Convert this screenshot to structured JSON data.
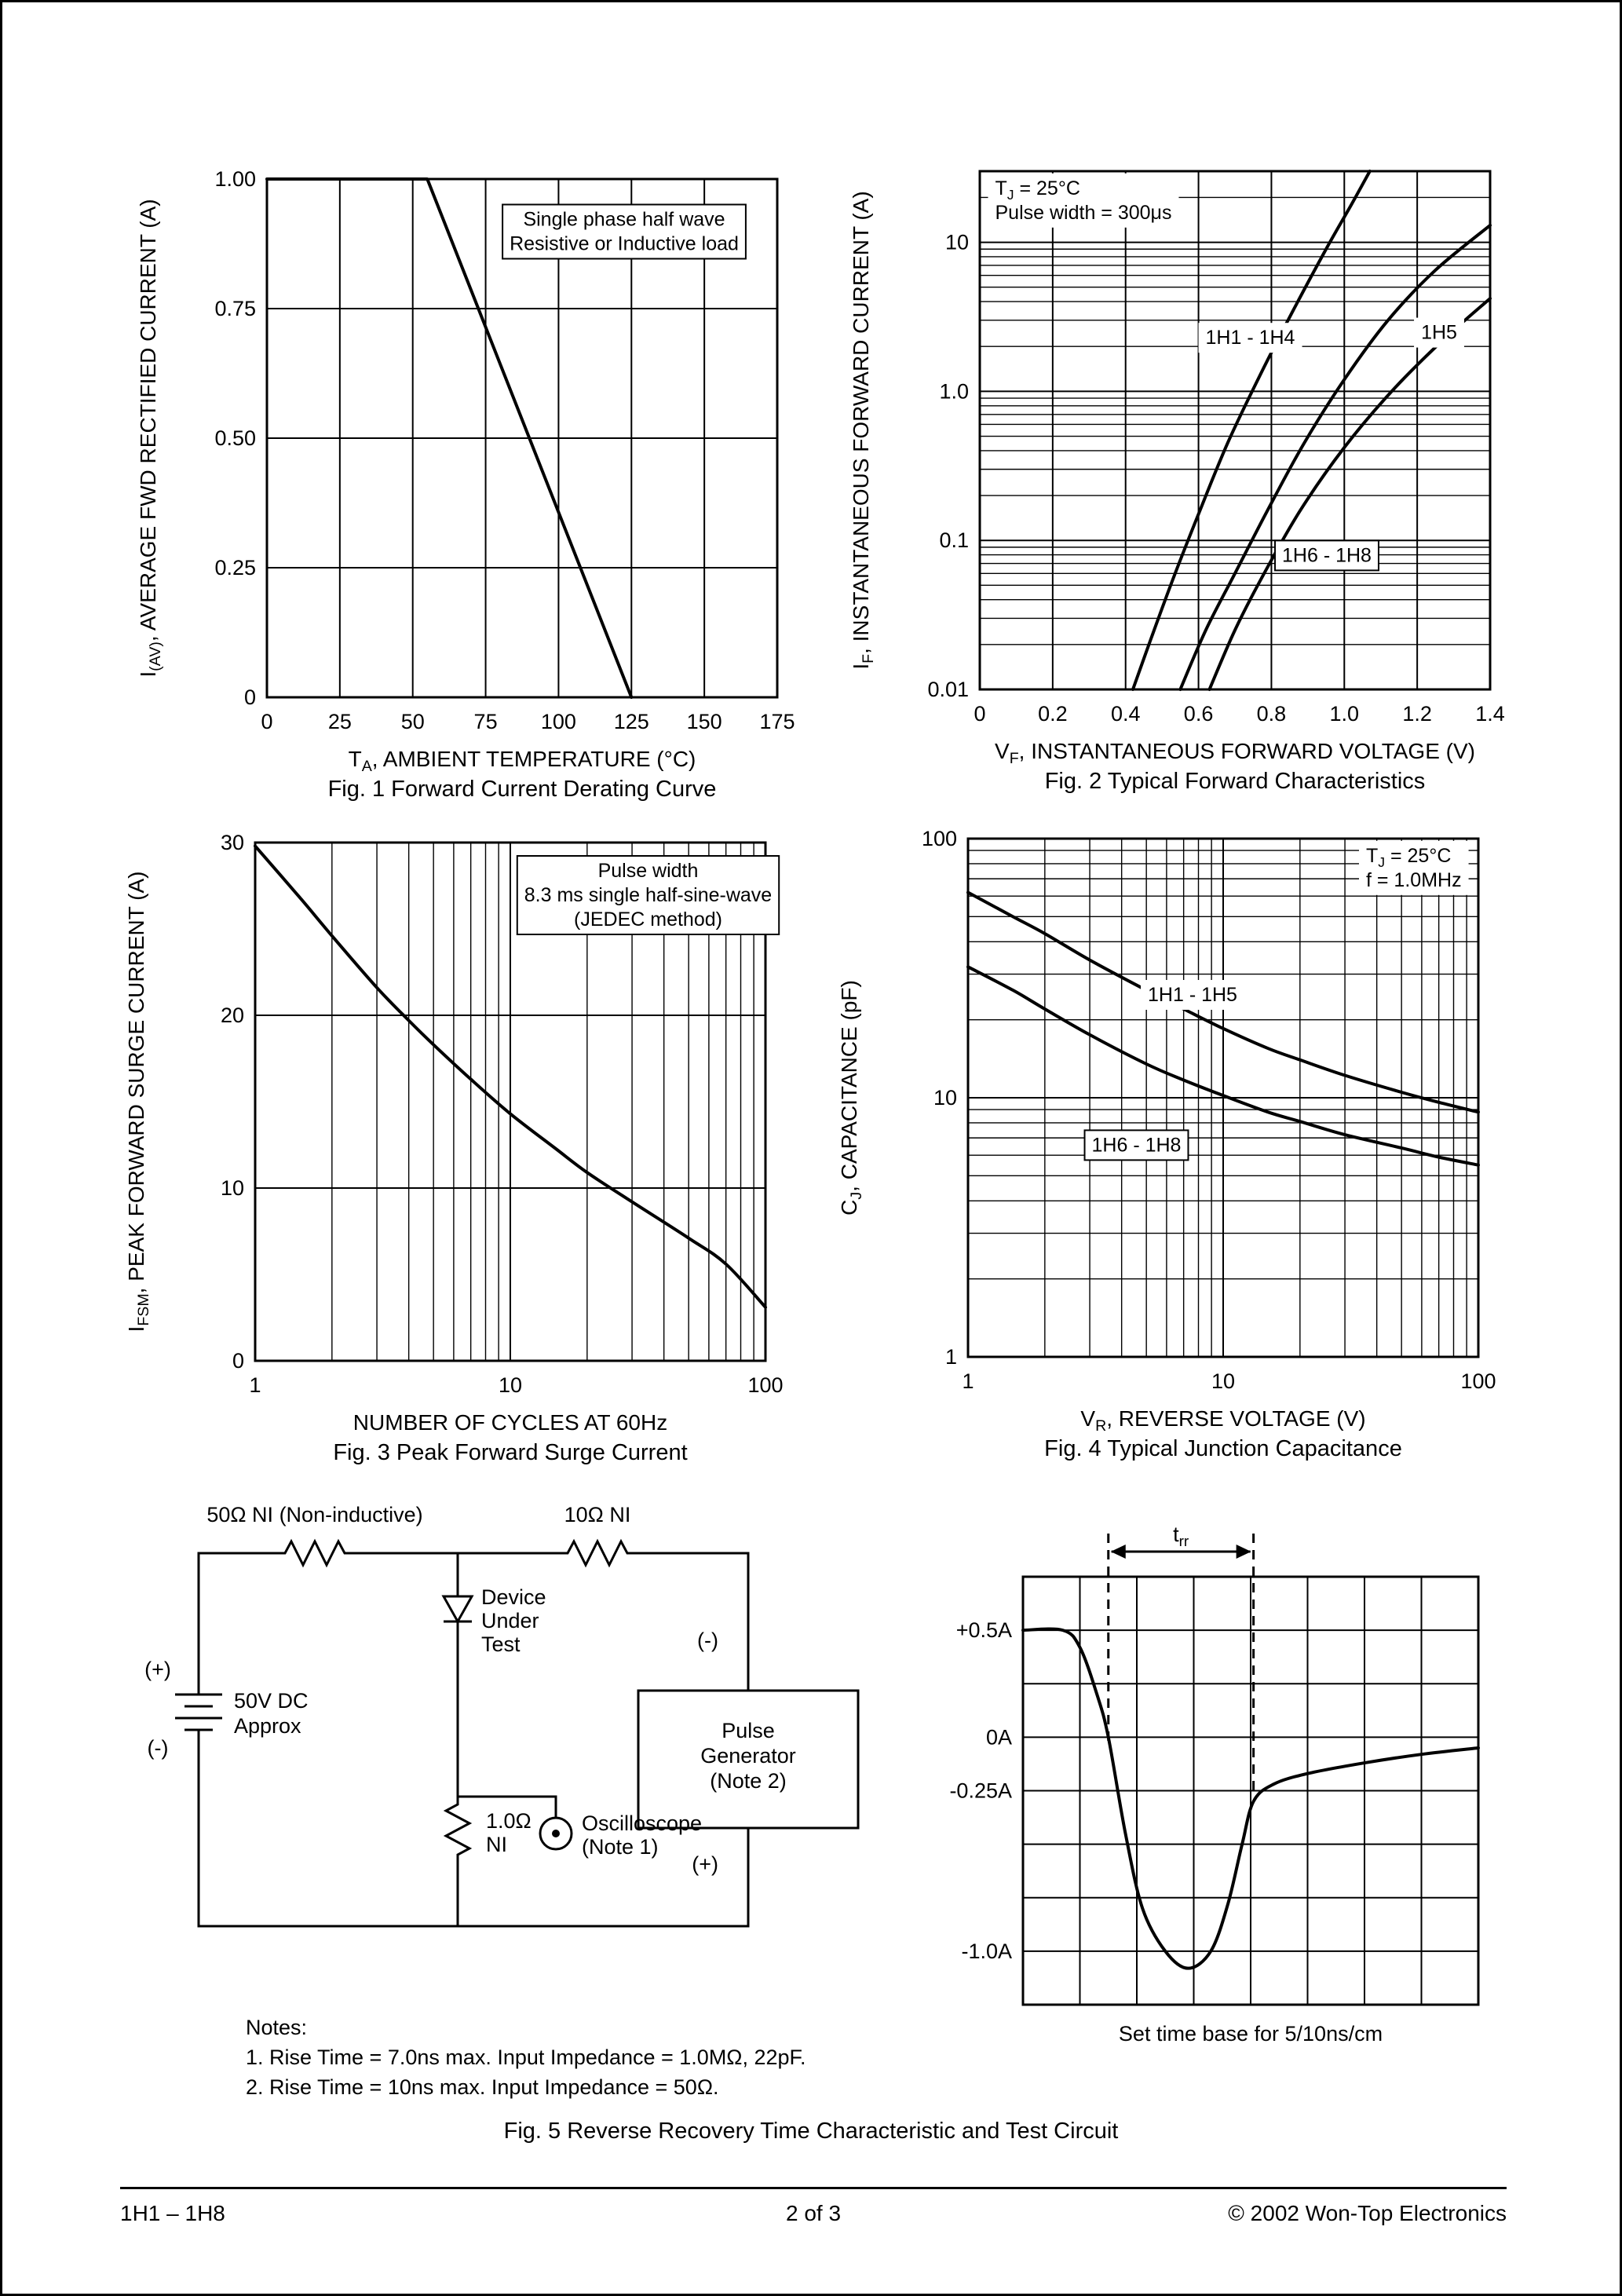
{
  "page": {
    "footer": {
      "left": "1H1 – 1H8",
      "center": "2  of  3",
      "right": "© 2002 Won-Top Electronics"
    }
  },
  "fig5": {
    "caption": "Fig. 5  Reverse Recovery Time Characteristic and Test Circuit",
    "circuit": {
      "r1_label": "50Ω NI (Non-inductive)",
      "r2_label": "10Ω NI",
      "dut_label": "Device\nUnder\nTest",
      "battery_plus": "(+)",
      "battery_minus": "(-)",
      "battery_label": "50V DC\nApprox",
      "pg_minus": "(-)",
      "pg_plus": "(+)",
      "pulse_gen_label": "Pulse\nGenerator\n(Note 2)",
      "r3_label": "1.0Ω\nNI",
      "scope_label": "Oscilloscope\n(Note 1)",
      "notes_title": "Notes:",
      "note1": "1. Rise Time = 7.0ns max. Input Impedance = 1.0MΩ, 22pF.",
      "note2": "2. Rise Time = 10ns max. Input Impedance = 50Ω."
    }
  },
  "chart_data": [
    {
      "id": "fig1",
      "type": "line",
      "title": "Fig. 1  Forward Current Derating Curve",
      "xlabel": "T_{A}, AMBIENT TEMPERATURE (°C)",
      "ylabel": "I_{(AV)}, AVERAGE FWD RECTIFIED CURRENT (A)",
      "xscale": "linear",
      "yscale": "linear",
      "xlim": [
        0,
        175
      ],
      "ylim": [
        0,
        1.0
      ],
      "xticks": [
        0,
        25,
        50,
        75,
        100,
        125,
        150,
        175
      ],
      "xtick_labels": [
        "0",
        "25",
        "50",
        "75",
        "100",
        "125",
        "150",
        "175"
      ],
      "yticks": [
        0,
        0.25,
        0.5,
        0.75,
        1.0
      ],
      "ytick_labels": [
        "0",
        "0.25",
        "0.50",
        "0.75",
        "1.00"
      ],
      "series": [
        {
          "name": "derating",
          "smooth": false,
          "points": [
            [
              0,
              1.0
            ],
            [
              55,
              1.0
            ],
            [
              125,
              0
            ]
          ]
        }
      ],
      "annotations": [
        {
          "text": "Single phase half wave\nResistive or Inductive load",
          "fx": 0.7,
          "fy": 0.1,
          "boxed": true
        }
      ]
    },
    {
      "id": "fig2",
      "type": "line",
      "title": "Fig. 2  Typical Forward Characteristics",
      "xlabel": "V_{F}, INSTANTANEOUS FORWARD VOLTAGE (V)",
      "ylabel": "I_{F}, INSTANTANEOUS FORWARD CURRENT (A)",
      "xscale": "linear",
      "yscale": "log",
      "xlim": [
        0,
        1.4
      ],
      "ylim": [
        0.01,
        30
      ],
      "xticks": [
        0,
        0.2,
        0.4,
        0.6,
        0.8,
        1.0,
        1.2,
        1.4
      ],
      "xtick_labels": [
        "0",
        "0.2",
        "0.4",
        "0.6",
        "0.8",
        "1.0",
        "1.2",
        "1.4"
      ],
      "yticks": [
        10,
        1.0,
        0.1,
        0.01
      ],
      "ytick_labels": [
        "10",
        "1.0",
        "0.1",
        "0.01"
      ],
      "series": [
        {
          "name": "1H1 - 1H4",
          "smooth": true,
          "points": [
            [
              0.42,
              0.01
            ],
            [
              0.47,
              0.022
            ],
            [
              0.53,
              0.055
            ],
            [
              0.6,
              0.15
            ],
            [
              0.68,
              0.45
            ],
            [
              0.77,
              1.3
            ],
            [
              0.86,
              3.5
            ],
            [
              0.95,
              9
            ],
            [
              1.02,
              18
            ],
            [
              1.07,
              30
            ]
          ]
        },
        {
          "name": "1H5",
          "smooth": true,
          "points": [
            [
              0.55,
              0.01
            ],
            [
              0.62,
              0.025
            ],
            [
              0.7,
              0.06
            ],
            [
              0.79,
              0.16
            ],
            [
              0.89,
              0.45
            ],
            [
              1.0,
              1.2
            ],
            [
              1.12,
              3.0
            ],
            [
              1.25,
              6.5
            ],
            [
              1.4,
              13
            ]
          ]
        },
        {
          "name": "1H6 - 1H8",
          "smooth": true,
          "points": [
            [
              0.63,
              0.01
            ],
            [
              0.7,
              0.025
            ],
            [
              0.78,
              0.06
            ],
            [
              0.88,
              0.16
            ],
            [
              1.0,
              0.42
            ],
            [
              1.13,
              1.0
            ],
            [
              1.27,
              2.2
            ],
            [
              1.4,
              4.2
            ]
          ]
        }
      ],
      "series_labels": [
        {
          "text": "1H1 - 1H4",
          "fx": 0.53,
          "fy": 0.32
        },
        {
          "text": "1H5",
          "fx": 0.9,
          "fy": 0.31
        },
        {
          "text": "1H6 - 1H8",
          "fx": 0.68,
          "fy": 0.74,
          "boxed": true
        }
      ],
      "annotations": [
        {
          "text": "T_{J} = 25°C\nPulse width = 300μs",
          "fx": 0.03,
          "fy": 0.055,
          "anchor": "start"
        }
      ]
    },
    {
      "id": "fig3",
      "type": "line",
      "title": "Fig. 3  Peak Forward Surge Current",
      "xlabel": "NUMBER OF CYCLES AT 60Hz",
      "ylabel": "I_{FSM}, PEAK FORWARD SURGE CURRENT (A)",
      "xscale": "log",
      "yscale": "linear",
      "xlim": [
        1,
        100
      ],
      "ylim": [
        0,
        30
      ],
      "xticks": [
        1,
        10,
        100
      ],
      "xtick_labels": [
        "1",
        "10",
        "100"
      ],
      "yticks": [
        0,
        10,
        20,
        30
      ],
      "ytick_labels": [
        "0",
        "10",
        "20",
        "30"
      ],
      "series": [
        {
          "name": "surge",
          "smooth": true,
          "points": [
            [
              1,
              29.8
            ],
            [
              1.5,
              26.8
            ],
            [
              2,
              24.6
            ],
            [
              3,
              21.6
            ],
            [
              4,
              19.7
            ],
            [
              5,
              18.3
            ],
            [
              7,
              16.3
            ],
            [
              10,
              14.3
            ],
            [
              15,
              12.3
            ],
            [
              20,
              10.9
            ],
            [
              30,
              9.2
            ],
            [
              50,
              7.1
            ],
            [
              70,
              5.6
            ],
            [
              100,
              3.1
            ]
          ]
        }
      ],
      "annotations": [
        {
          "text": "Pulse width\n8.3 ms single half-sine-wave\n(JEDEC method)",
          "fx": 0.77,
          "fy": 0.1,
          "boxed": true
        }
      ]
    },
    {
      "id": "fig4",
      "type": "line",
      "title": "Fig. 4  Typical Junction Capacitance",
      "xlabel": "V_{R}, REVERSE VOLTAGE (V)",
      "ylabel": "C_{J}, CAPACITANCE (pF)",
      "xscale": "log",
      "yscale": "log",
      "xlim": [
        1,
        100
      ],
      "ylim": [
        1,
        100
      ],
      "xticks": [
        1,
        10,
        100
      ],
      "xtick_labels": [
        "1",
        "10",
        "100"
      ],
      "yticks": [
        1,
        10,
        100
      ],
      "ytick_labels": [
        "1",
        "10",
        "100"
      ],
      "series": [
        {
          "name": "1H1 - 1H5",
          "smooth": true,
          "points": [
            [
              1,
              62
            ],
            [
              1.5,
              50
            ],
            [
              2,
              43
            ],
            [
              3,
              34
            ],
            [
              5,
              26
            ],
            [
              7,
              22
            ],
            [
              10,
              18.5
            ],
            [
              15,
              15.5
            ],
            [
              20,
              14
            ],
            [
              30,
              12.2
            ],
            [
              50,
              10.5
            ],
            [
              70,
              9.6
            ],
            [
              100,
              8.8
            ]
          ]
        },
        {
          "name": "1H6 - 1H8",
          "smooth": true,
          "points": [
            [
              1,
              32
            ],
            [
              1.5,
              26
            ],
            [
              2,
              22
            ],
            [
              3,
              17.5
            ],
            [
              5,
              13.5
            ],
            [
              7,
              11.7
            ],
            [
              10,
              10.2
            ],
            [
              15,
              8.8
            ],
            [
              20,
              8.1
            ],
            [
              30,
              7.2
            ],
            [
              50,
              6.4
            ],
            [
              70,
              5.9
            ],
            [
              100,
              5.5
            ]
          ]
        }
      ],
      "series_labels": [
        {
          "text": "1H1 - 1H5",
          "fx": 0.44,
          "fy": 0.3
        },
        {
          "text": "1H6 - 1H8",
          "fx": 0.33,
          "fy": 0.59,
          "boxed": true
        }
      ],
      "annotations": [
        {
          "text": "T_{J} = 25°C\nf = 1.0MHz",
          "fx": 0.78,
          "fy": 0.055,
          "anchor": "start"
        }
      ]
    },
    {
      "id": "fig5wave",
      "type": "waveform",
      "xscale": "linear",
      "yscale": "linear",
      "xlim": [
        0,
        8
      ],
      "ylim": [
        -1.25,
        0.75
      ],
      "xgrid_step": 1,
      "ygrid_step": 0.25,
      "yticks": [
        0.5,
        0,
        -0.25,
        -1.0
      ],
      "ytick_labels": [
        "+0.5A",
        "0A",
        "-0.25A",
        "-1.0A"
      ],
      "series": [
        {
          "name": "reverse-recovery",
          "smooth": true,
          "points": [
            [
              0,
              0.5
            ],
            [
              0.7,
              0.5
            ],
            [
              1.0,
              0.42
            ],
            [
              1.3,
              0.2
            ],
            [
              1.5,
              0
            ],
            [
              1.8,
              -0.45
            ],
            [
              2.1,
              -0.8
            ],
            [
              2.5,
              -1.0
            ],
            [
              2.9,
              -1.08
            ],
            [
              3.3,
              -1.0
            ],
            [
              3.6,
              -0.78
            ],
            [
              3.85,
              -0.5
            ],
            [
              4.05,
              -0.3
            ],
            [
              4.4,
              -0.22
            ],
            [
              5,
              -0.17
            ],
            [
              6,
              -0.12
            ],
            [
              7,
              -0.08
            ],
            [
              8,
              -0.05
            ]
          ]
        }
      ],
      "trr": {
        "x1": 1.5,
        "x2": 4.05,
        "label": "t_{rr}"
      },
      "caption": "Set time base for 5/10ns/cm"
    }
  ]
}
